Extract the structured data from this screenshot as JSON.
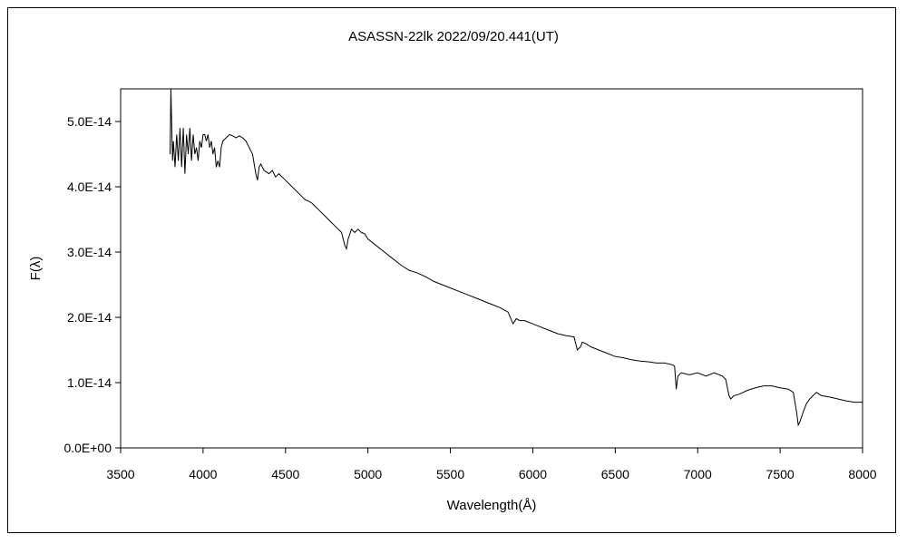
{
  "chart_data": {
    "type": "line",
    "title": "ASASSN-22lk   2022/09/20.441(UT)",
    "xlabel": "Wavelength(Å)",
    "ylabel": "F(λ)",
    "xlim": [
      3500,
      8000
    ],
    "ylim": [
      0,
      5.5e-14
    ],
    "xticks": [
      3500,
      4000,
      4500,
      5000,
      5500,
      6000,
      6500,
      7000,
      7500,
      8000
    ],
    "xtick_labels": [
      "3500",
      "4000",
      "4500",
      "5000",
      "5500",
      "6000",
      "6500",
      "7000",
      "7500",
      "8000"
    ],
    "yticks": [
      0,
      1e-14,
      2e-14,
      3e-14,
      4e-14,
      5e-14
    ],
    "ytick_labels": [
      "0.0E+00",
      "1.0E-14",
      "2.0E-14",
      "3.0E-14",
      "4.0E-14",
      "5.0E-14"
    ],
    "grid": false,
    "legend": "none",
    "line_color": "#000000",
    "series": [
      {
        "x": [
          3800,
          3805,
          3810,
          3815,
          3820,
          3830,
          3840,
          3850,
          3860,
          3870,
          3880,
          3890,
          3900,
          3910,
          3920,
          3930,
          3940,
          3950,
          3960,
          3970,
          3980,
          3990,
          4000,
          4010,
          4020,
          4030,
          4040,
          4050,
          4060,
          4070,
          4080,
          4090,
          4100,
          4110,
          4120,
          4140,
          4160,
          4180,
          4200,
          4220,
          4240,
          4260,
          4280,
          4300,
          4320,
          4330,
          4340,
          4350,
          4370,
          4400,
          4420,
          4440,
          4460,
          4480,
          4500,
          4520,
          4540,
          4560,
          4580,
          4600,
          4620,
          4640,
          4660,
          4680,
          4700,
          4720,
          4740,
          4760,
          4780,
          4800,
          4820,
          4840,
          4850,
          4860,
          4870,
          4880,
          4900,
          4920,
          4940,
          4960,
          4980,
          5000,
          5050,
          5100,
          5150,
          5200,
          5250,
          5300,
          5350,
          5400,
          5450,
          5500,
          5550,
          5600,
          5650,
          5700,
          5750,
          5800,
          5850,
          5880,
          5900,
          5920,
          5950,
          6000,
          6050,
          6100,
          6150,
          6200,
          6250,
          6270,
          6290,
          6300,
          6320,
          6350,
          6400,
          6450,
          6500,
          6550,
          6600,
          6650,
          6700,
          6750,
          6800,
          6850,
          6860,
          6870,
          6880,
          6900,
          6950,
          7000,
          7050,
          7100,
          7150,
          7170,
          7190,
          7200,
          7220,
          7250,
          7300,
          7350,
          7400,
          7450,
          7500,
          7550,
          7580,
          7600,
          7610,
          7620,
          7640,
          7660,
          7680,
          7700,
          7720,
          7750,
          7800,
          7850,
          7900,
          7950,
          8000
        ],
        "values": [
          4.5e-14,
          5.5e-14,
          4.9e-14,
          4.4e-14,
          4.7e-14,
          4.3e-14,
          4.8e-14,
          4.4e-14,
          4.9e-14,
          4.3e-14,
          4.9e-14,
          4.2e-14,
          4.8e-14,
          4.5e-14,
          4.9e-14,
          4.4e-14,
          4.8e-14,
          4.5e-14,
          4.6e-14,
          4.4e-14,
          4.7e-14,
          4.6e-14,
          4.8e-14,
          4.8e-14,
          4.7e-14,
          4.8e-14,
          4.6e-14,
          4.7e-14,
          4.5e-14,
          4.6e-14,
          4.3e-14,
          4.4e-14,
          4.3e-14,
          4.6e-14,
          4.7e-14,
          4.75e-14,
          4.8e-14,
          4.78e-14,
          4.75e-14,
          4.78e-14,
          4.75e-14,
          4.7e-14,
          4.6e-14,
          4.5e-14,
          4.2e-14,
          4.1e-14,
          4.3e-14,
          4.35e-14,
          4.25e-14,
          4.2e-14,
          4.25e-14,
          4.15e-14,
          4.2e-14,
          4.15e-14,
          4.1e-14,
          4.05e-14,
          4e-14,
          3.95e-14,
          3.9e-14,
          3.85e-14,
          3.8e-14,
          3.78e-14,
          3.75e-14,
          3.7e-14,
          3.65e-14,
          3.6e-14,
          3.55e-14,
          3.5e-14,
          3.45e-14,
          3.4e-14,
          3.35e-14,
          3.3e-14,
          3.2e-14,
          3.1e-14,
          3.05e-14,
          3.2e-14,
          3.35e-14,
          3.3e-14,
          3.35e-14,
          3.3e-14,
          3.28e-14,
          3.2e-14,
          3.1e-14,
          3e-14,
          2.9e-14,
          2.8e-14,
          2.72e-14,
          2.68e-14,
          2.62e-14,
          2.55e-14,
          2.5e-14,
          2.45e-14,
          2.4e-14,
          2.35e-14,
          2.3e-14,
          2.25e-14,
          2.2e-14,
          2.15e-14,
          2.08e-14,
          1.9e-14,
          1.98e-14,
          1.95e-14,
          1.95e-14,
          1.9e-14,
          1.85e-14,
          1.8e-14,
          1.75e-14,
          1.72e-14,
          1.7e-14,
          1.5e-14,
          1.55e-14,
          1.62e-14,
          1.6e-14,
          1.55e-14,
          1.5e-14,
          1.45e-14,
          1.4e-14,
          1.38e-14,
          1.35e-14,
          1.33e-14,
          1.32e-14,
          1.3e-14,
          1.3e-14,
          1.27e-14,
          1.25e-14,
          9e-15,
          1.1e-14,
          1.15e-14,
          1.12e-14,
          1.15e-14,
          1.1e-14,
          1.15e-14,
          1.1e-14,
          1.05e-14,
          8e-15,
          7.5e-15,
          8e-15,
          8.2e-15,
          8.8e-15,
          9.2e-15,
          9.5e-15,
          9.5e-15,
          9.2e-15,
          9e-15,
          8.5e-15,
          5.5e-15,
          3.5e-15,
          4e-15,
          5.5e-15,
          6.8e-15,
          7.5e-15,
          8e-15,
          8.5e-15,
          8e-15,
          7.8e-15,
          7.5e-15,
          7.2e-15,
          7e-15,
          7e-15
        ]
      }
    ]
  }
}
